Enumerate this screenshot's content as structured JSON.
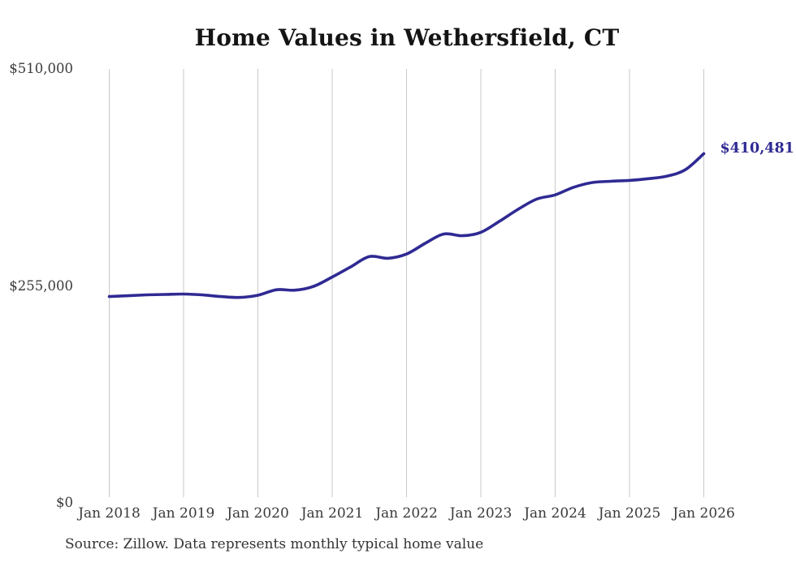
{
  "title": "Home Values in Wethersfield, CT",
  "source_note": "Source: Zillow. Data represents monthly typical home value",
  "colors": {
    "line": "#2f2a93",
    "annotation": "#2f2a93",
    "grid": "#c9c9c9",
    "axis_text": "#3a3a3a",
    "title_text": "#141414"
  },
  "chart_data": {
    "type": "line",
    "title": "Home Values in Wethersfield, CT",
    "xlabel": "",
    "ylabel": "",
    "ylim": [
      0,
      510000
    ],
    "grid": "vertical-only",
    "legend": "none",
    "x_ticks": [
      "Jan 2018",
      "Jan 2019",
      "Jan 2020",
      "Jan 2021",
      "Jan 2022",
      "Jan 2023",
      "Jan 2024",
      "Jan 2025",
      "Jan 2026"
    ],
    "y_ticks": [
      {
        "label": "$0",
        "value": 0
      },
      {
        "label": "$255,000",
        "value": 255000
      },
      {
        "label": "$510,000",
        "value": 510000
      }
    ],
    "end_label": "$410,481",
    "latest_value": 410481,
    "series": [
      {
        "name": "Typical home value",
        "points": [
          {
            "date": "Jan 2018",
            "value": 242500
          },
          {
            "date": "Apr 2018",
            "value": 243500
          },
          {
            "date": "Jul 2018",
            "value": 244500
          },
          {
            "date": "Oct 2018",
            "value": 245000
          },
          {
            "date": "Jan 2019",
            "value": 245500
          },
          {
            "date": "Apr 2019",
            "value": 244500
          },
          {
            "date": "Jul 2019",
            "value": 242500
          },
          {
            "date": "Oct 2019",
            "value": 241500
          },
          {
            "date": "Jan 2020",
            "value": 244000
          },
          {
            "date": "Apr 2020",
            "value": 250500
          },
          {
            "date": "Jul 2020",
            "value": 250000
          },
          {
            "date": "Oct 2020",
            "value": 254500
          },
          {
            "date": "Jan 2021",
            "value": 265500
          },
          {
            "date": "Apr 2021",
            "value": 277500
          },
          {
            "date": "Jul 2021",
            "value": 289500
          },
          {
            "date": "Oct 2021",
            "value": 287500
          },
          {
            "date": "Jan 2022",
            "value": 292500
          },
          {
            "date": "Apr 2022",
            "value": 305000
          },
          {
            "date": "Jul 2022",
            "value": 316000
          },
          {
            "date": "Oct 2022",
            "value": 314000
          },
          {
            "date": "Jan 2023",
            "value": 318000
          },
          {
            "date": "Apr 2023",
            "value": 331000
          },
          {
            "date": "Jul 2023",
            "value": 345000
          },
          {
            "date": "Oct 2023",
            "value": 357000
          },
          {
            "date": "Jan 2024",
            "value": 362000
          },
          {
            "date": "Apr 2024",
            "value": 371000
          },
          {
            "date": "Jul 2024",
            "value": 376500
          },
          {
            "date": "Oct 2024",
            "value": 378000
          },
          {
            "date": "Jan 2025",
            "value": 379000
          },
          {
            "date": "Apr 2025",
            "value": 381000
          },
          {
            "date": "Jul 2025",
            "value": 384000
          },
          {
            "date": "Oct 2025",
            "value": 391500
          },
          {
            "date": "Jan 2026",
            "value": 410481
          }
        ]
      }
    ]
  }
}
